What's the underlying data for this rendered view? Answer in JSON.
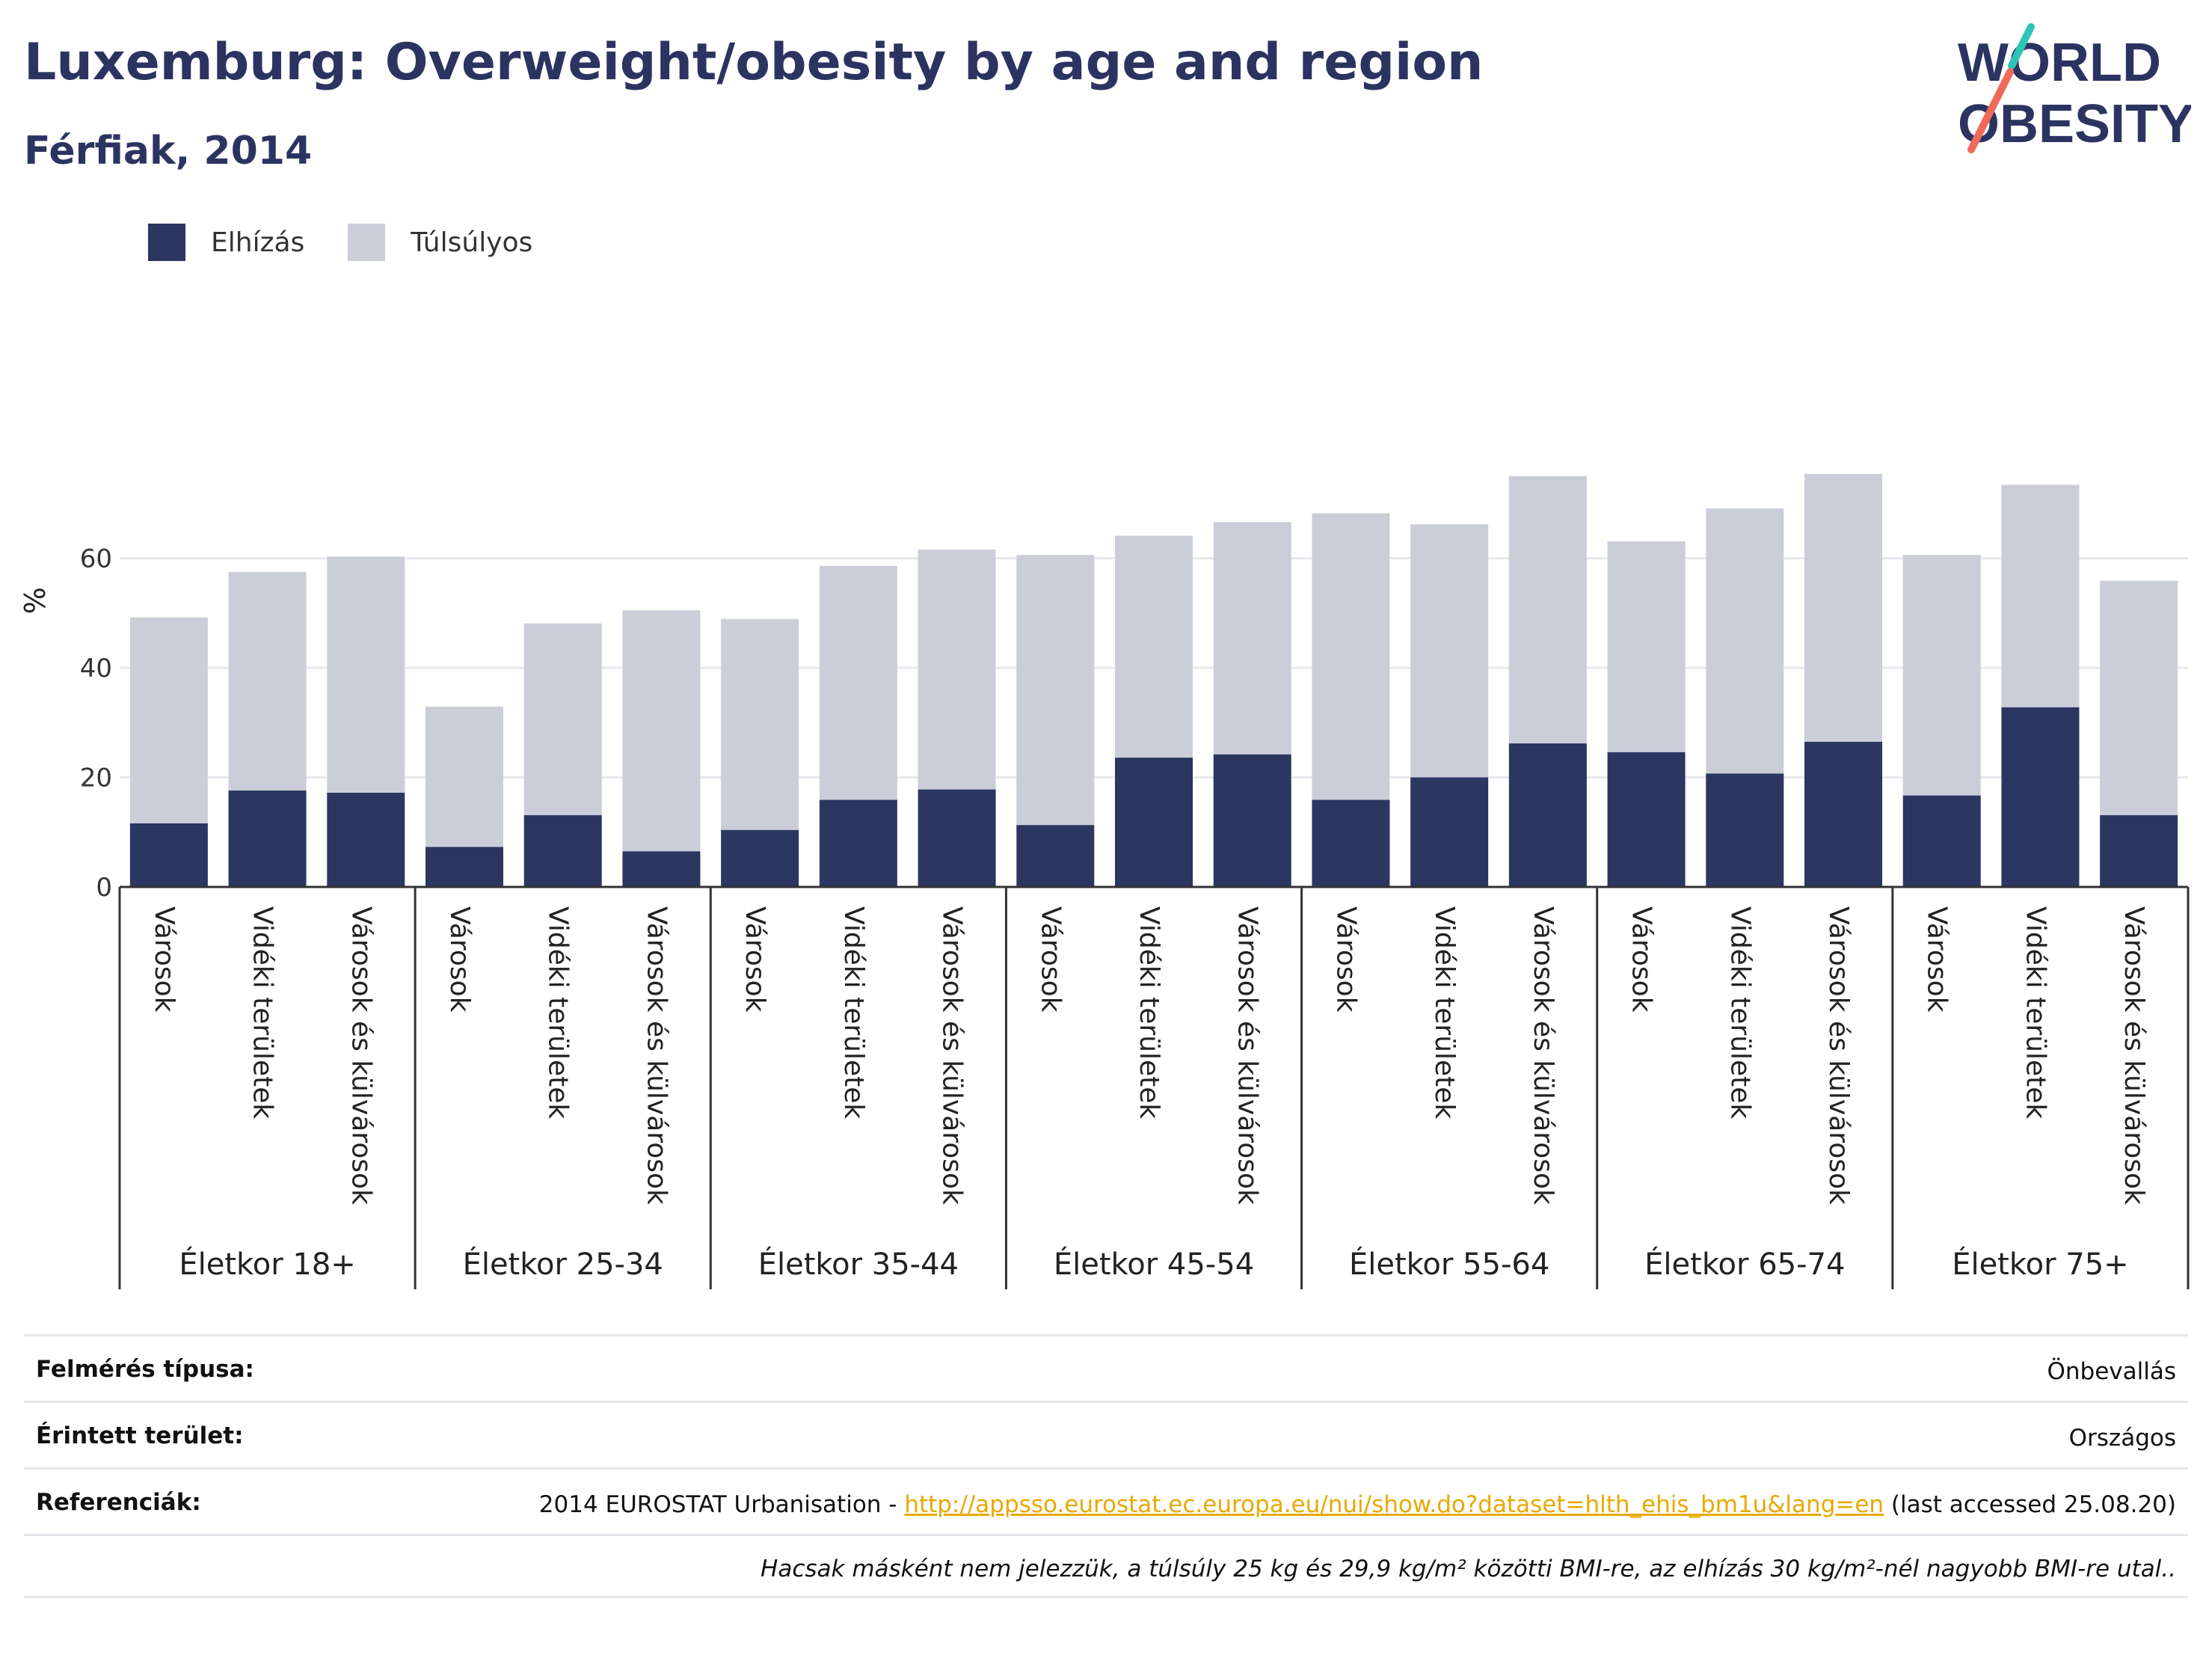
{
  "header": {
    "title": "Luxemburg: Overweight/obesity by age and region",
    "subtitle": "Férfiak, 2014"
  },
  "logo": {
    "line1": "WORLD",
    "line2": "OBESITY"
  },
  "colors": {
    "obesity": "#2b3661",
    "overweight": "#cbcdd9",
    "axis": "#333333",
    "grid": "#e8e8ee",
    "link": "#e8a900"
  },
  "chart_data": {
    "type": "bar",
    "stacked": true,
    "ylabel": "%",
    "ylim": [
      0,
      80
    ],
    "yticks": [
      0,
      20,
      40,
      60
    ],
    "grid": true,
    "legend_position": "top-left",
    "groups": [
      {
        "label": "Életkor 18+",
        "categories": [
          "Városok",
          "Vidéki területek",
          "Városok és külvárosok"
        ]
      },
      {
        "label": "Életkor 25-34",
        "categories": [
          "Városok",
          "Vidéki területek",
          "Városok és külvárosok"
        ]
      },
      {
        "label": "Életkor 35-44",
        "categories": [
          "Városok",
          "Vidéki területek",
          "Városok és külvárosok"
        ]
      },
      {
        "label": "Életkor 45-54",
        "categories": [
          "Városok",
          "Vidéki területek",
          "Városok és külvárosok"
        ]
      },
      {
        "label": "Életkor 55-64",
        "categories": [
          "Városok",
          "Vidéki területek",
          "Városok és külvárosok"
        ]
      },
      {
        "label": "Életkor 65-74",
        "categories": [
          "Városok",
          "Vidéki területek",
          "Városok és külvárosok"
        ]
      },
      {
        "label": "Életkor 75+",
        "categories": [
          "Városok",
          "Vidéki területek",
          "Városok és külvárosok"
        ]
      }
    ],
    "series": [
      {
        "name": "Elhízás",
        "values": [
          11.6,
          17.6,
          17.2,
          7.3,
          13.1,
          6.5,
          10.4,
          15.9,
          17.8,
          11.3,
          23.6,
          24.2,
          15.9,
          20.0,
          26.2,
          24.6,
          20.7,
          26.5,
          16.7,
          32.8,
          13.1
        ]
      },
      {
        "name": "Túlsúlyos",
        "values": [
          37.6,
          39.9,
          43.1,
          25.6,
          35.0,
          44.0,
          38.5,
          42.7,
          43.8,
          49.3,
          40.5,
          42.4,
          52.3,
          46.2,
          48.8,
          38.5,
          48.4,
          48.9,
          43.9,
          40.6,
          42.8
        ]
      }
    ]
  },
  "info": {
    "survey_label": "Felmérés típusa:",
    "survey_value": "Önbevallás",
    "area_label": "Érintett terület:",
    "area_value": "Országos",
    "ref_label": "Referenciák:",
    "ref_prefix": "2014 EUROSTAT Urbanisation - ",
    "ref_link": "http://appsso.eurostat.ec.europa.eu/nui/show.do?dataset=hlth_ehis_bm1u&lang=en",
    "ref_suffix": " (last accessed 25.08.20)",
    "note": "Hacsak másként nem jelezzük, a túlsúly 25 kg és 29,9 kg/m² közötti BMI-re, az elhízás 30 kg/m²-nél nagyobb BMI-re utal.."
  }
}
